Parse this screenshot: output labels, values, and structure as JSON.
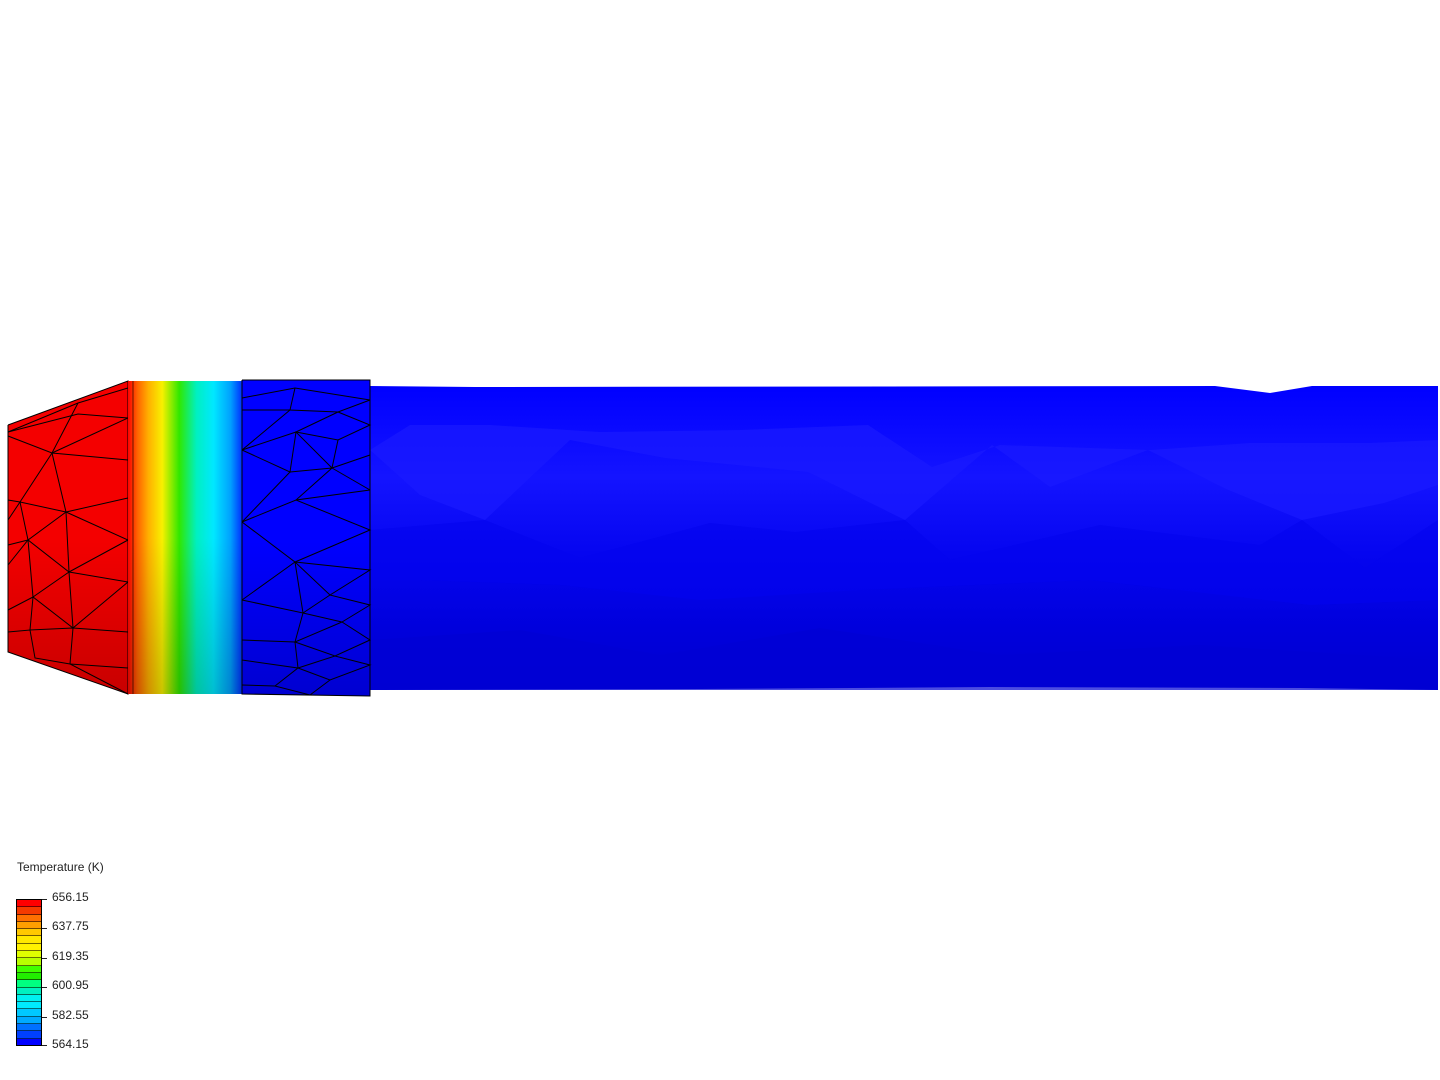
{
  "legend": {
    "title": "Temperature (K)",
    "ticks": [
      "656.15",
      "637.75",
      "619.35",
      "600.95",
      "582.55",
      "564.15"
    ],
    "range": [
      564.15,
      656.15
    ],
    "bands": [
      "#ff0000",
      "#f53a00",
      "#ff7000",
      "#ff9e00",
      "#ffc800",
      "#ffe800",
      "#fff200",
      "#e0ff00",
      "#b8ff00",
      "#40ff00",
      "#22ee00",
      "#00ff80",
      "#00f0c0",
      "#00f0f0",
      "#00eaff",
      "#00c8ff",
      "#00aaff",
      "#0070ff",
      "#0040ff",
      "#0000ff"
    ]
  },
  "colors": {
    "hot": "#ff0000",
    "cold": "#0000ff",
    "mesh": "#000000"
  }
}
